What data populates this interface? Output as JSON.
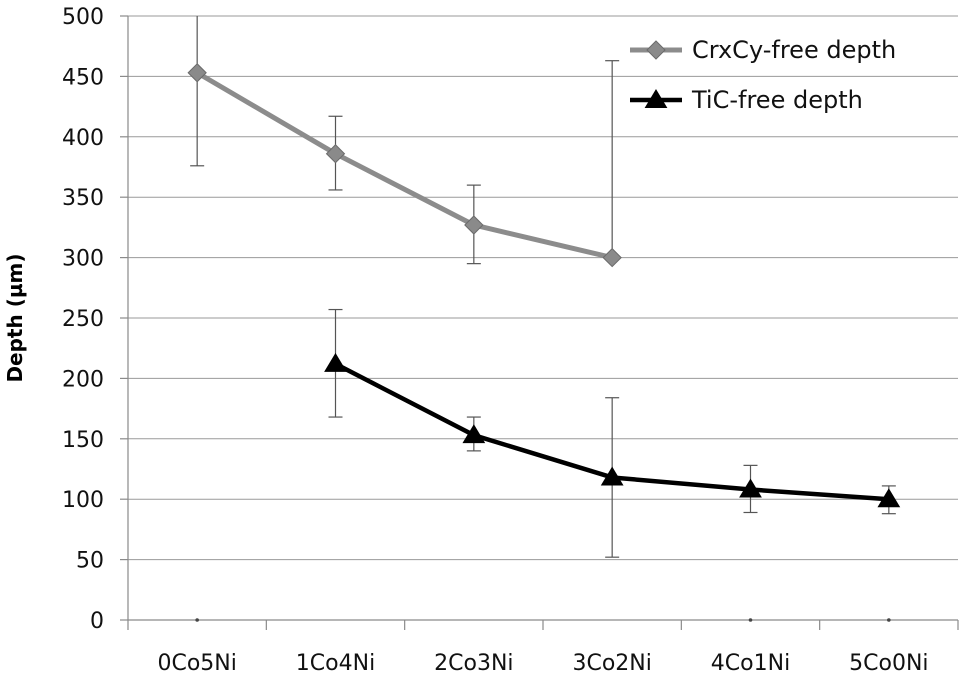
{
  "chart_data": {
    "type": "line",
    "ylabel": "Depth (µm)",
    "ylim": [
      0,
      500
    ],
    "yticks": [
      0,
      50,
      100,
      150,
      200,
      250,
      300,
      350,
      400,
      450,
      500
    ],
    "grid": true,
    "legend_position": "top-right",
    "categories": [
      "0Co5Ni",
      "1Co4Ni",
      "2Co3Ni",
      "3Co2Ni",
      "4Co1Ni",
      "5Co0Ni"
    ],
    "series": [
      {
        "name": "CrxCy-free depth",
        "color": "#8c8c8c",
        "marker": "diamond",
        "values": [
          453,
          386,
          327,
          300,
          null,
          null
        ],
        "error_low": [
          376,
          356,
          295,
          null,
          null,
          null
        ],
        "error_high": [
          500,
          417,
          360,
          463,
          null,
          null
        ]
      },
      {
        "name": "TiC-free depth",
        "color": "#000000",
        "marker": "triangle",
        "values": [
          null,
          212,
          153,
          118,
          108,
          100
        ],
        "error_low": [
          null,
          168,
          140,
          52,
          89,
          88
        ],
        "error_high": [
          null,
          257,
          168,
          184,
          128,
          111
        ]
      }
    ],
    "zero_points": [
      0,
      4,
      5
    ]
  }
}
